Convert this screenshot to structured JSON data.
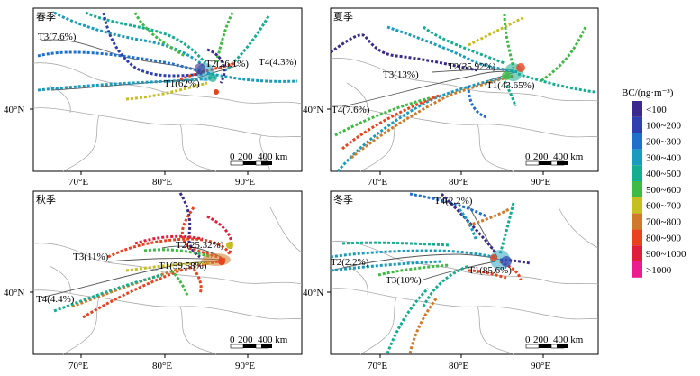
{
  "legend": {
    "title": "BC/(ng·m⁻³)",
    "items": [
      {
        "label": "<100",
        "color": "#3b2a8c"
      },
      {
        "label": "100~200",
        "color": "#2f3fb0"
      },
      {
        "label": "200~300",
        "color": "#1f6fcc"
      },
      {
        "label": "300~400",
        "color": "#1a9bbd"
      },
      {
        "label": "400~500",
        "color": "#15ad8f"
      },
      {
        "label": "500~600",
        "color": "#3fba44"
      },
      {
        "label": "600~700",
        "color": "#c6bf22"
      },
      {
        "label": "700~800",
        "color": "#cf7a2a"
      },
      {
        "label": "800~900",
        "color": "#e8421f"
      },
      {
        "label": "900~1000",
        "color": "#e01e3c"
      },
      {
        "label": ">1000",
        "color": "#ec1c8e"
      }
    ]
  },
  "axes": {
    "x_ticks": [
      "70°E",
      "80°E",
      "90°E"
    ],
    "y_tick": "40°N"
  },
  "scale_bar": {
    "zero": "0",
    "mid": "200",
    "end": "400 km"
  },
  "panels": [
    {
      "season": "春季",
      "clusters": [
        {
          "label": "T1(62%)"
        },
        {
          "label": "T2(26.1%)"
        },
        {
          "label": "T3(7.6%)"
        },
        {
          "label": "T4(4.3%)"
        }
      ]
    },
    {
      "season": "夏季",
      "clusters": [
        {
          "label": "T1(43.65%)"
        },
        {
          "label": "T2(35.92%)"
        },
        {
          "label": "T3(13%)"
        },
        {
          "label": "T4(7.6%)"
        }
      ]
    },
    {
      "season": "秋季",
      "clusters": [
        {
          "label": "T1(59.58%)"
        },
        {
          "label": "T2(25.32%)"
        },
        {
          "label": "T3(11%)"
        },
        {
          "label": "T4(4.4%)"
        }
      ]
    },
    {
      "season": "冬季",
      "clusters": [
        {
          "label": "T1(85.6%)"
        },
        {
          "label": "T2(2.2%)"
        },
        {
          "label": "T3(10%)"
        },
        {
          "label": "T4(2.2%)"
        }
      ]
    }
  ]
}
